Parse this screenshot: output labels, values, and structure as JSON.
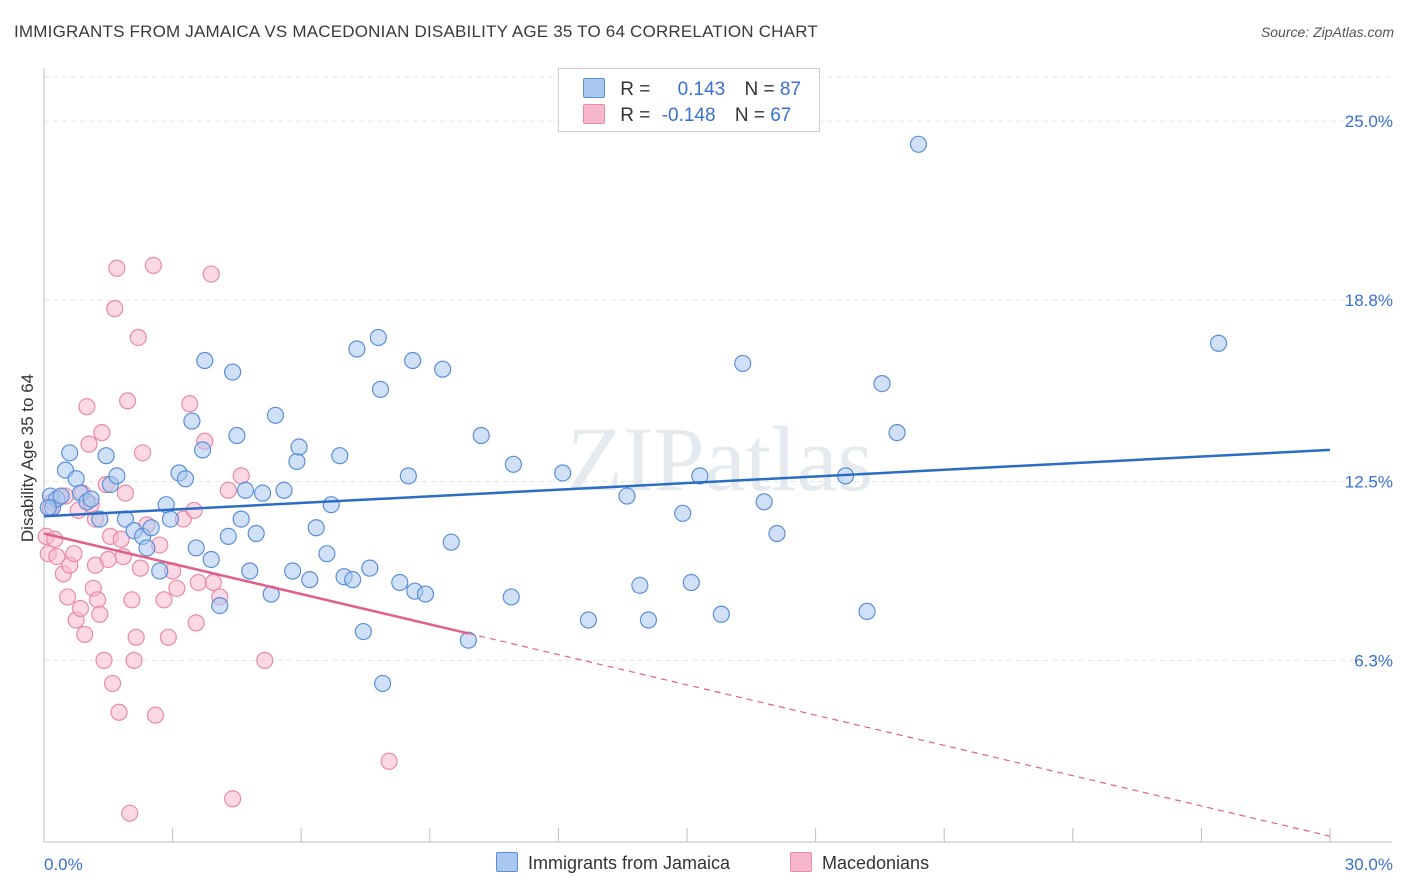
{
  "title": "IMMIGRANTS FROM JAMAICA VS MACEDONIAN DISABILITY AGE 35 TO 64 CORRELATION CHART",
  "source": "Source: ZipAtlas.com",
  "watermark": "ZIPatlas",
  "legend": {
    "rows": [
      {
        "r_label": "R =",
        "r_value": "0.143",
        "n_label": "N =",
        "n_value": "87"
      },
      {
        "r_label": "R =",
        "r_value": "-0.148",
        "n_label": "N =",
        "n_value": "67"
      }
    ]
  },
  "bottom_legend": [
    "Immigrants from Jamaica",
    "Macedonians"
  ],
  "colors": {
    "blue_fill": "#a9c8f0",
    "blue_stroke": "#5b8fd8",
    "blue_line": "#2b6cc4",
    "pink_fill": "#f7b8cc",
    "pink_stroke": "#e88aa8",
    "pink_line": "#e0608a",
    "grid": "#e4e4e4",
    "tick_label": "#3a6fd6"
  },
  "chart_data": {
    "type": "scatter",
    "xlabel": "",
    "ylabel": "Disability Age 35 to 64",
    "xlim": [
      0,
      30
    ],
    "ylim": [
      0,
      26.5
    ],
    "x_tick_labels": [
      "0.0%",
      "30.0%"
    ],
    "y_ticks": [
      6.3,
      12.5,
      18.8,
      25.0
    ],
    "y_tick_labels": [
      "6.3%",
      "12.5%",
      "18.8%",
      "25.0%"
    ],
    "grid": "horizontal dashed",
    "legend_position": "top-center",
    "series": [
      {
        "name": "Immigrants from Jamaica",
        "trend": {
          "x0": 0.0,
          "y0": 11.3,
          "x1": 30.0,
          "y1": 13.6,
          "dashed_from": null
        },
        "points": [
          [
            0.15,
            12.0
          ],
          [
            0.2,
            11.6
          ],
          [
            0.3,
            11.9
          ],
          [
            0.4,
            12.0
          ],
          [
            0.5,
            12.9
          ],
          [
            0.6,
            13.5
          ],
          [
            0.75,
            12.6
          ],
          [
            0.85,
            12.1
          ],
          [
            1.0,
            11.8
          ],
          [
            1.1,
            11.9
          ],
          [
            1.3,
            11.2
          ],
          [
            1.45,
            13.4
          ],
          [
            1.55,
            12.4
          ],
          [
            1.7,
            12.7
          ],
          [
            1.9,
            11.2
          ],
          [
            2.1,
            10.8
          ],
          [
            2.3,
            10.6
          ],
          [
            2.4,
            10.2
          ],
          [
            2.5,
            10.9
          ],
          [
            2.7,
            9.4
          ],
          [
            2.85,
            11.7
          ],
          [
            2.95,
            11.2
          ],
          [
            3.15,
            12.8
          ],
          [
            3.3,
            12.6
          ],
          [
            3.45,
            14.6
          ],
          [
            3.55,
            10.2
          ],
          [
            3.7,
            13.6
          ],
          [
            3.75,
            16.7
          ],
          [
            3.9,
            9.8
          ],
          [
            4.1,
            8.2
          ],
          [
            4.3,
            10.6
          ],
          [
            4.4,
            16.3
          ],
          [
            4.5,
            14.1
          ],
          [
            4.6,
            11.2
          ],
          [
            4.7,
            12.2
          ],
          [
            4.8,
            9.4
          ],
          [
            4.95,
            10.7
          ],
          [
            5.1,
            12.1
          ],
          [
            5.3,
            8.6
          ],
          [
            5.4,
            14.8
          ],
          [
            5.6,
            12.2
          ],
          [
            5.8,
            9.4
          ],
          [
            5.9,
            13.2
          ],
          [
            5.95,
            13.7
          ],
          [
            6.2,
            9.1
          ],
          [
            6.35,
            10.9
          ],
          [
            6.6,
            10.0
          ],
          [
            6.7,
            11.7
          ],
          [
            6.9,
            13.4
          ],
          [
            7.0,
            9.2
          ],
          [
            7.2,
            9.1
          ],
          [
            7.3,
            17.1
          ],
          [
            7.45,
            7.3
          ],
          [
            7.6,
            9.5
          ],
          [
            7.8,
            17.5
          ],
          [
            7.85,
            15.7
          ],
          [
            7.9,
            5.5
          ],
          [
            8.3,
            9.0
          ],
          [
            8.5,
            12.7
          ],
          [
            8.6,
            16.7
          ],
          [
            8.65,
            8.7
          ],
          [
            8.9,
            8.6
          ],
          [
            9.3,
            16.4
          ],
          [
            9.5,
            10.4
          ],
          [
            9.9,
            7.0
          ],
          [
            10.2,
            14.1
          ],
          [
            10.9,
            8.5
          ],
          [
            10.95,
            13.1
          ],
          [
            12.1,
            12.8
          ],
          [
            12.7,
            7.7
          ],
          [
            13.6,
            12.0
          ],
          [
            13.9,
            8.9
          ],
          [
            14.1,
            7.7
          ],
          [
            14.9,
            11.4
          ],
          [
            15.1,
            9.0
          ],
          [
            15.3,
            12.7
          ],
          [
            15.8,
            7.9
          ],
          [
            16.3,
            16.6
          ],
          [
            16.8,
            11.8
          ],
          [
            17.1,
            10.7
          ],
          [
            18.7,
            12.7
          ],
          [
            19.2,
            8.0
          ],
          [
            19.55,
            15.9
          ],
          [
            19.9,
            14.2
          ],
          [
            20.4,
            24.2
          ],
          [
            27.4,
            17.3
          ],
          [
            0.1,
            11.6
          ]
        ]
      },
      {
        "name": "Macedonians",
        "trend": {
          "x0": 0.0,
          "y0": 10.7,
          "x1": 30.0,
          "y1": 0.2,
          "dashed_from": 9.9
        },
        "points": [
          [
            0.05,
            10.6
          ],
          [
            0.1,
            10.0
          ],
          [
            0.15,
            11.6
          ],
          [
            0.2,
            11.8
          ],
          [
            0.25,
            10.5
          ],
          [
            0.3,
            9.9
          ],
          [
            0.4,
            12.0
          ],
          [
            0.45,
            9.3
          ],
          [
            0.55,
            8.5
          ],
          [
            0.6,
            9.6
          ],
          [
            0.7,
            10.0
          ],
          [
            0.75,
            7.7
          ],
          [
            0.8,
            11.5
          ],
          [
            0.85,
            8.1
          ],
          [
            0.9,
            12.1
          ],
          [
            0.95,
            7.2
          ],
          [
            1.0,
            15.1
          ],
          [
            1.05,
            13.8
          ],
          [
            1.1,
            11.7
          ],
          [
            1.15,
            8.8
          ],
          [
            1.2,
            9.6
          ],
          [
            1.25,
            8.4
          ],
          [
            1.3,
            7.9
          ],
          [
            1.35,
            14.2
          ],
          [
            1.4,
            6.3
          ],
          [
            1.45,
            12.4
          ],
          [
            1.5,
            9.8
          ],
          [
            1.55,
            10.6
          ],
          [
            1.6,
            5.5
          ],
          [
            1.65,
            18.5
          ],
          [
            1.7,
            19.9
          ],
          [
            1.75,
            4.5
          ],
          [
            1.8,
            10.5
          ],
          [
            1.85,
            9.9
          ],
          [
            1.9,
            12.1
          ],
          [
            1.95,
            15.3
          ],
          [
            2.0,
            1.0
          ],
          [
            2.05,
            8.4
          ],
          [
            2.1,
            6.3
          ],
          [
            2.15,
            7.1
          ],
          [
            2.2,
            17.5
          ],
          [
            2.25,
            9.5
          ],
          [
            2.3,
            13.5
          ],
          [
            2.4,
            11.0
          ],
          [
            2.55,
            20.0
          ],
          [
            2.6,
            4.4
          ],
          [
            2.7,
            10.3
          ],
          [
            2.8,
            8.4
          ],
          [
            2.9,
            7.1
          ],
          [
            3.0,
            9.4
          ],
          [
            3.1,
            8.8
          ],
          [
            3.25,
            11.2
          ],
          [
            3.4,
            15.2
          ],
          [
            3.5,
            11.5
          ],
          [
            3.55,
            7.6
          ],
          [
            3.6,
            9.0
          ],
          [
            3.75,
            13.9
          ],
          [
            3.9,
            19.7
          ],
          [
            3.95,
            9.0
          ],
          [
            4.1,
            8.5
          ],
          [
            4.3,
            12.2
          ],
          [
            4.4,
            1.5
          ],
          [
            4.6,
            12.7
          ],
          [
            5.15,
            6.3
          ],
          [
            8.05,
            2.8
          ],
          [
            0.5,
            12.0
          ],
          [
            1.2,
            11.2
          ]
        ]
      }
    ]
  }
}
